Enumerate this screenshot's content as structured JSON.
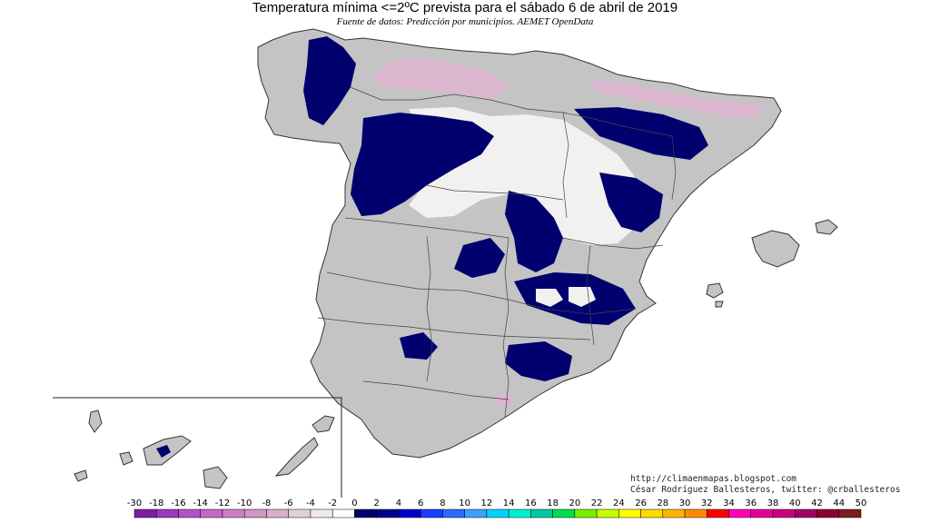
{
  "title": "Temperatura mínima <=2ºC prevista para el sábado 6 de abril de 2019",
  "subtitle": "Fuente de datos: Predicción por municipios. AEMET OpenData",
  "credits": {
    "url": "http://climaenmapas.blogspot.com",
    "author": "César Rodríguez Ballesteros, twitter: @crballesteros"
  },
  "colors": {
    "land": "#c4c4c4",
    "cold_zone": "#00006e",
    "snow": "#f3f0f0",
    "pink": "#dcb6cf",
    "border": "#333333"
  },
  "legend": {
    "ticks": [
      "-30",
      "-18",
      "-16",
      "-14",
      "-12",
      "-10",
      "-8",
      "-6",
      "-4",
      "-2",
      "0",
      "2",
      "4",
      "6",
      "8",
      "10",
      "12",
      "14",
      "16",
      "18",
      "20",
      "22",
      "24",
      "26",
      "28",
      "30",
      "32",
      "34",
      "36",
      "38",
      "40",
      "42",
      "44",
      "50"
    ],
    "colors": [
      "#7a1fa0",
      "#9a3abf",
      "#b451c9",
      "#c567c9",
      "#cc7fc5",
      "#d296c4",
      "#d9b0cb",
      "#e2cfd9",
      "#f0e8ee",
      "#ffffff",
      "#00006e",
      "#00008f",
      "#0000c8",
      "#1a3cff",
      "#2a6cff",
      "#3aa0ff",
      "#00d2ff",
      "#00f0d2",
      "#00c8a0",
      "#00dc50",
      "#78f000",
      "#c8ff00",
      "#ffff00",
      "#ffdc00",
      "#ffb400",
      "#ff8c00",
      "#ff0000",
      "#ff00b4",
      "#e60096",
      "#c8007d",
      "#a00064",
      "#8c0032",
      "#781e1e"
    ]
  }
}
